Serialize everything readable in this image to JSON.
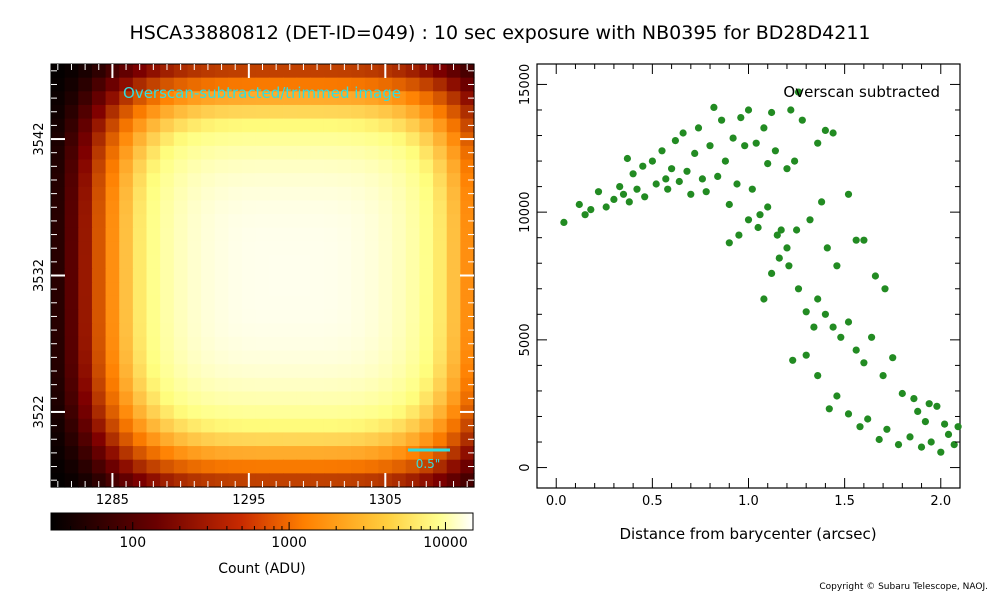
{
  "title": "HSCA33880812 (DET-ID=049) :  10 sec exposure with NB0395 for BD28D4211",
  "copyright": "Copyright © Subaru Telescope, NAOJ.",
  "colors": {
    "scatter": "#228b22",
    "annotation": "#33dddd"
  },
  "chart_data": [
    {
      "type": "heatmap",
      "annotation": "Overscan-subtracted/trimmed image",
      "scale_bar_label": "0.5\"",
      "x_ticks": [
        "1285",
        "1295",
        "1305"
      ],
      "y_ticks": [
        "3542",
        "3532",
        "3522"
      ],
      "x_range": [
        1280.5,
        1311.5
      ],
      "y_range": [
        3516.5,
        3547.5
      ],
      "peak_center": [
        1298,
        3532
      ],
      "peak_value": 12000,
      "colorbar": {
        "label": "Count (ADU)",
        "scale": "log",
        "range": [
          30,
          15000
        ],
        "ticks": [
          "100",
          "1000",
          "10000"
        ],
        "colormap": "afmhot"
      }
    },
    {
      "type": "scatter",
      "annotation": "Overscan subtracted",
      "xlabel": "Distance from barycenter (arcsec)",
      "ylabel": "",
      "xlim": [
        -0.1,
        2.1
      ],
      "ylim": [
        -800,
        15800
      ],
      "x_ticks": [
        "0.0",
        "0.5",
        "1.0",
        "1.5",
        "2.0"
      ],
      "y_ticks": [
        "0",
        "5000",
        "10000",
        "15000"
      ],
      "grid": false,
      "points_note": "approximately 450 points; inner plateau ~10000-15000 ADU, falling to ~1000 ADU beyond 1.8 arcsec",
      "points": [
        [
          0.04,
          9600
        ],
        [
          0.12,
          10300
        ],
        [
          0.15,
          9900
        ],
        [
          0.18,
          10100
        ],
        [
          0.22,
          10800
        ],
        [
          0.26,
          10200
        ],
        [
          0.3,
          10500
        ],
        [
          0.33,
          11000
        ],
        [
          0.35,
          10700
        ],
        [
          0.37,
          12100
        ],
        [
          0.38,
          10400
        ],
        [
          0.4,
          11500
        ],
        [
          0.42,
          10900
        ],
        [
          0.45,
          11800
        ],
        [
          0.46,
          10600
        ],
        [
          0.5,
          12000
        ],
        [
          0.52,
          11100
        ],
        [
          0.55,
          12400
        ],
        [
          0.57,
          11300
        ],
        [
          0.58,
          10900
        ],
        [
          0.6,
          11700
        ],
        [
          0.62,
          12800
        ],
        [
          0.64,
          11200
        ],
        [
          0.66,
          13100
        ],
        [
          0.68,
          11600
        ],
        [
          0.7,
          10700
        ],
        [
          0.72,
          12300
        ],
        [
          0.74,
          13300
        ],
        [
          0.76,
          11300
        ],
        [
          0.78,
          10800
        ],
        [
          0.8,
          12600
        ],
        [
          0.82,
          14100
        ],
        [
          0.84,
          11400
        ],
        [
          0.86,
          13600
        ],
        [
          0.88,
          12000
        ],
        [
          0.9,
          10300
        ],
        [
          0.92,
          12900
        ],
        [
          0.94,
          11100
        ],
        [
          0.96,
          13700
        ],
        [
          0.98,
          12600
        ],
        [
          1.0,
          14000
        ],
        [
          1.02,
          10900
        ],
        [
          1.04,
          12700
        ],
        [
          1.06,
          9900
        ],
        [
          1.08,
          13300
        ],
        [
          1.1,
          11900
        ],
        [
          1.12,
          13900
        ],
        [
          1.14,
          12400
        ],
        [
          1.17,
          9300
        ],
        [
          1.2,
          11700
        ],
        [
          1.22,
          14000
        ],
        [
          1.24,
          12000
        ],
        [
          1.26,
          14700
        ],
        [
          1.28,
          13600
        ],
        [
          1.36,
          12700
        ],
        [
          1.4,
          13200
        ],
        [
          1.44,
          13100
        ],
        [
          0.9,
          8800
        ],
        [
          0.95,
          9100
        ],
        [
          1.0,
          9700
        ],
        [
          1.05,
          9400
        ],
        [
          1.1,
          10200
        ],
        [
          1.15,
          9100
        ],
        [
          1.2,
          8600
        ],
        [
          1.25,
          9300
        ],
        [
          1.32,
          9700
        ],
        [
          1.38,
          10400
        ],
        [
          1.41,
          8600
        ],
        [
          1.46,
          7900
        ],
        [
          1.52,
          10700
        ],
        [
          1.56,
          8900
        ],
        [
          1.6,
          8900
        ],
        [
          1.66,
          7500
        ],
        [
          1.71,
          7000
        ],
        [
          1.08,
          6600
        ],
        [
          1.12,
          7600
        ],
        [
          1.16,
          8200
        ],
        [
          1.21,
          7900
        ],
        [
          1.26,
          7000
        ],
        [
          1.3,
          6100
        ],
        [
          1.34,
          5500
        ],
        [
          1.36,
          6600
        ],
        [
          1.4,
          6000
        ],
        [
          1.44,
          5500
        ],
        [
          1.48,
          5100
        ],
        [
          1.52,
          5700
        ],
        [
          1.56,
          4600
        ],
        [
          1.6,
          4100
        ],
        [
          1.64,
          5100
        ],
        [
          1.7,
          3600
        ],
        [
          1.75,
          4300
        ],
        [
          1.8,
          2900
        ],
        [
          1.23,
          4200
        ],
        [
          1.3,
          4400
        ],
        [
          1.36,
          3600
        ],
        [
          1.42,
          2300
        ],
        [
          1.46,
          2800
        ],
        [
          1.52,
          2100
        ],
        [
          1.58,
          1600
        ],
        [
          1.62,
          1900
        ],
        [
          1.68,
          1100
        ],
        [
          1.72,
          1500
        ],
        [
          1.78,
          900
        ],
        [
          1.84,
          1200
        ],
        [
          1.9,
          800
        ],
        [
          1.95,
          1000
        ],
        [
          2.0,
          600
        ],
        [
          2.04,
          1300
        ],
        [
          2.07,
          900
        ],
        [
          2.09,
          1600
        ],
        [
          1.88,
          2200
        ],
        [
          1.92,
          1800
        ],
        [
          1.98,
          2400
        ],
        [
          2.02,
          1700
        ],
        [
          1.86,
          2700
        ],
        [
          1.94,
          2500
        ]
      ]
    }
  ]
}
